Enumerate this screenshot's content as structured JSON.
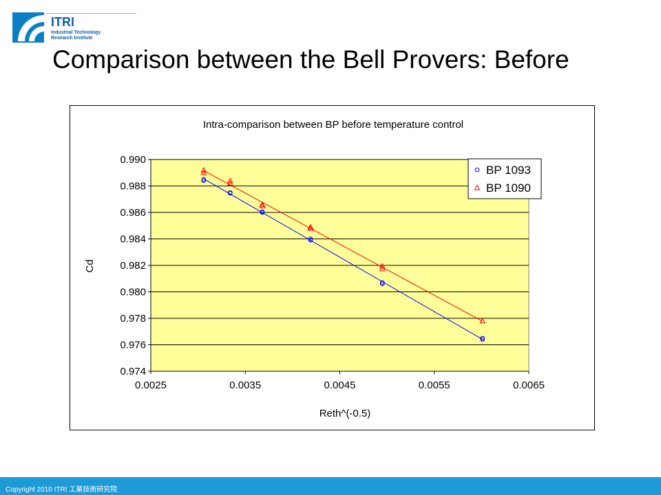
{
  "logo": {
    "name": "ITRI",
    "line1": "Industrial Technology",
    "line2": "Research Institute"
  },
  "slide": {
    "title": "Comparison between the Bell Provers: Before"
  },
  "footer": {
    "text": "Copyright 2010 ITRI  工業技術研究院"
  },
  "colors": {
    "plot_bg": "#ffff99",
    "series1": "#0000ff",
    "series2": "#ff0000",
    "footer": "#1e9ad6"
  },
  "chart_data": {
    "type": "scatter",
    "title": "Intra-comparison between BP before temperature control",
    "xlabel": "Reth^(-0.5)",
    "ylabel": "Cd",
    "xlim": [
      0.0025,
      0.0065
    ],
    "ylim": [
      0.974,
      0.99
    ],
    "xticks": [
      "0.0025",
      "0.0035",
      "0.0045",
      "0.0055",
      "0.0065"
    ],
    "yticks": [
      "0.974",
      "0.976",
      "0.978",
      "0.980",
      "0.982",
      "0.984",
      "0.986",
      "0.988",
      "0.990"
    ],
    "grid": true,
    "legend": "top-right",
    "trendlines": true,
    "series": [
      {
        "name": "BP 1093",
        "marker": "circle",
        "x": [
          0.00306,
          0.00306,
          0.00334,
          0.00334,
          0.00368,
          0.00368,
          0.00419,
          0.00419,
          0.00495,
          0.00495,
          0.00601,
          0.00601
        ],
        "y": [
          0.9885,
          0.9884,
          0.9875,
          0.98745,
          0.98605,
          0.986,
          0.984,
          0.9839,
          0.9807,
          0.9806,
          0.9765,
          0.9764
        ]
      },
      {
        "name": "BP 1090",
        "marker": "triangle",
        "x": [
          0.00306,
          0.00306,
          0.00334,
          0.00334,
          0.00368,
          0.00368,
          0.00419,
          0.00419,
          0.00495,
          0.00495,
          0.00601
        ],
        "y": [
          0.9892,
          0.989,
          0.9884,
          0.9882,
          0.9866,
          0.9865,
          0.9849,
          0.9848,
          0.98195,
          0.98175,
          0.9778
        ]
      }
    ]
  }
}
